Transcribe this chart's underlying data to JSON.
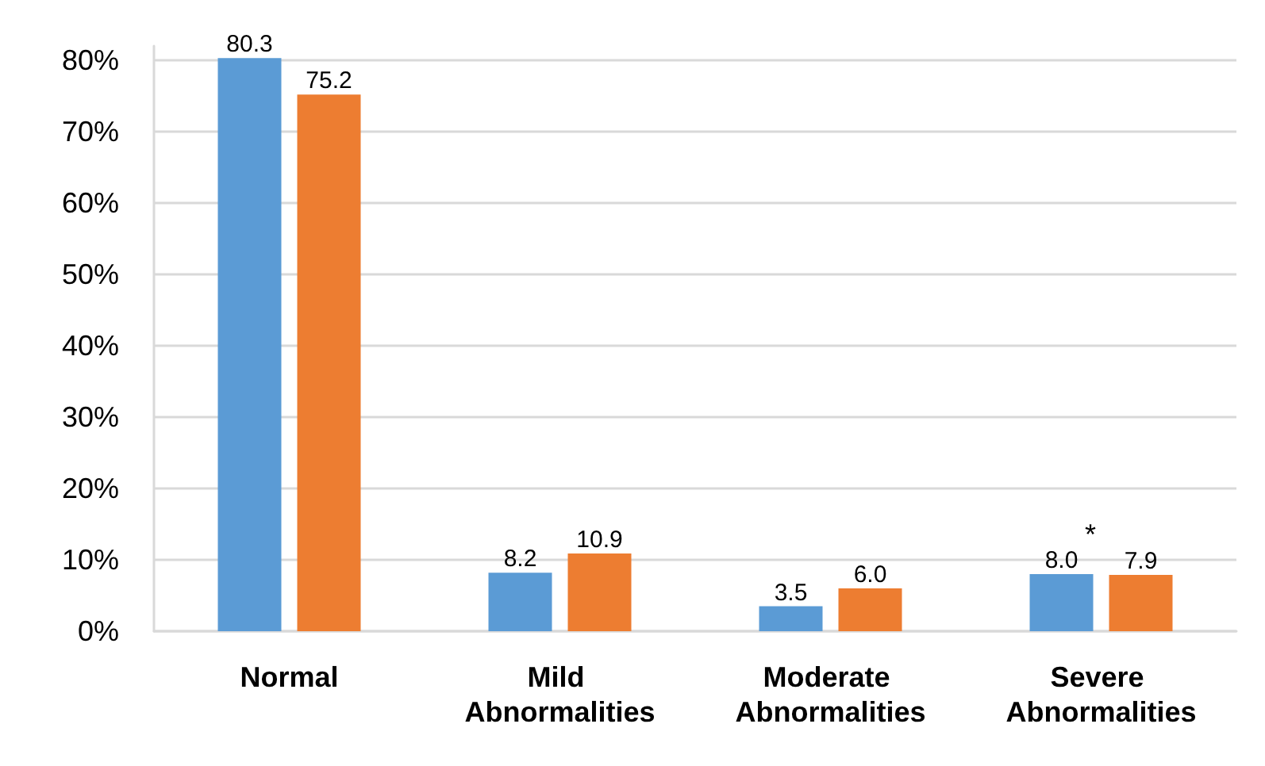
{
  "chart_data": {
    "type": "bar",
    "categories": [
      "Normal",
      "Mild Abnormalities",
      "Moderate Abnormalities",
      "Severe Abnormalities"
    ],
    "series": [
      {
        "color": "#5b9bd5",
        "values": [
          80.3,
          8.2,
          3.5,
          8.0
        ],
        "value_labels": [
          "80.3",
          "8.2",
          "3.5",
          "8.0"
        ]
      },
      {
        "color": "#ed7d31",
        "values": [
          75.2,
          10.9,
          6.0,
          7.9
        ],
        "value_labels": [
          "75.2",
          "10.9",
          "6.0",
          "7.9"
        ]
      }
    ],
    "ylim": [
      0,
      82
    ],
    "yticks": [
      {
        "value": 0,
        "label": "0%"
      },
      {
        "value": 10,
        "label": "10%"
      },
      {
        "value": 20,
        "label": "20%"
      },
      {
        "value": 30,
        "label": "30%"
      },
      {
        "value": 40,
        "label": "40%"
      },
      {
        "value": 50,
        "label": "50%"
      },
      {
        "value": 60,
        "label": "60%"
      },
      {
        "value": 70,
        "label": "70%"
      },
      {
        "value": 80,
        "label": "80%"
      }
    ],
    "grid": "y",
    "annotations": [
      "*"
    ]
  }
}
